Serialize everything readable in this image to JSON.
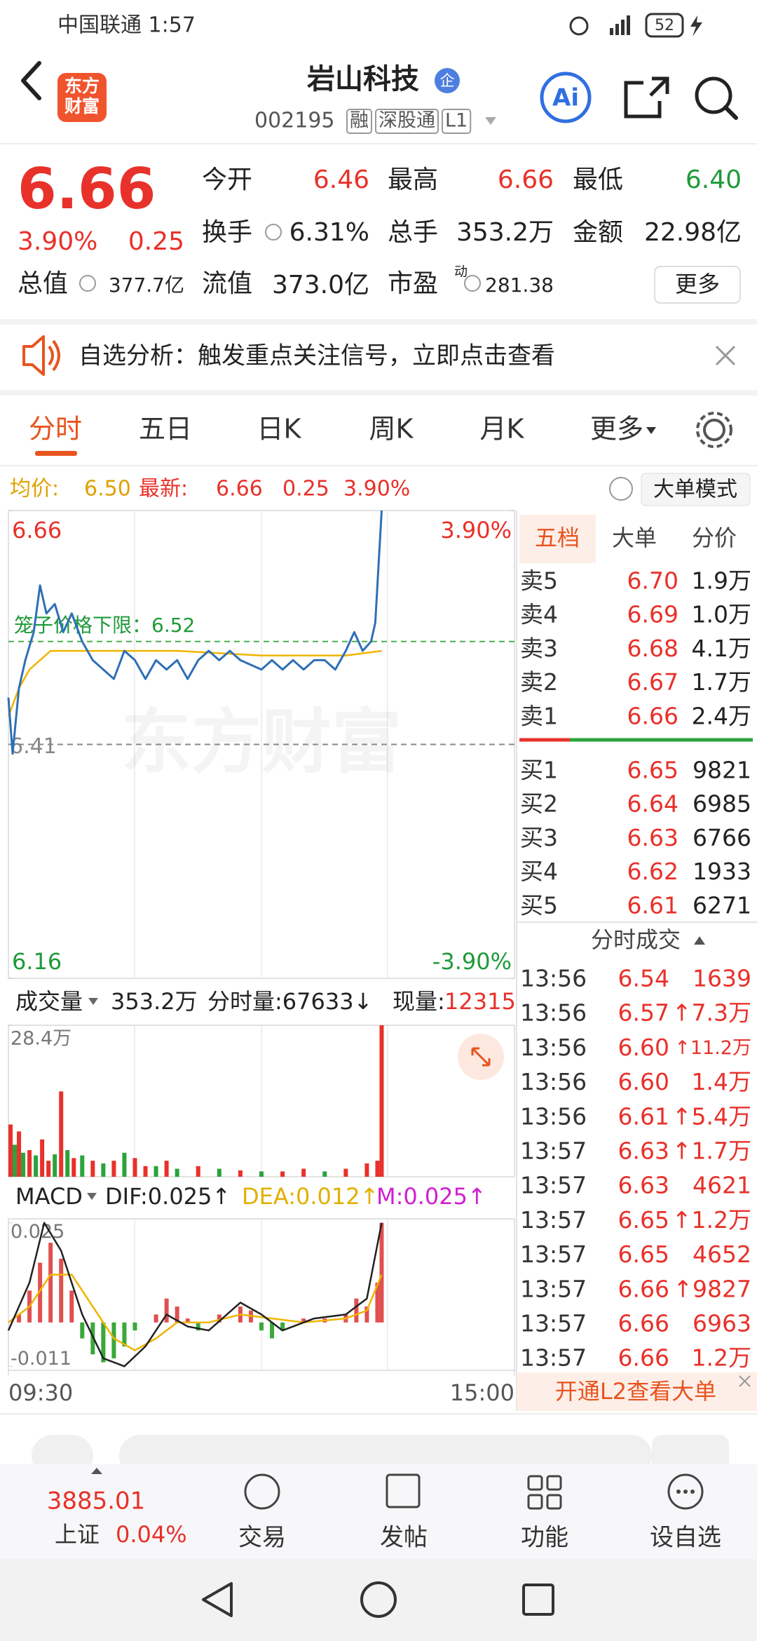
{
  "status": {
    "carrier_time": "中国联通 1:57",
    "battery": "52"
  },
  "header": {
    "logo_top": "东方",
    "logo_bottom": "财富",
    "title": "岩山科技",
    "badge": "企",
    "code": "002195",
    "tags": [
      "融",
      "深股通",
      "L1"
    ],
    "ai": "Ai"
  },
  "quote": {
    "price": "6.66",
    "change_pct": "3.90%",
    "change": "0.25",
    "rows": [
      [
        {
          "label": "今开",
          "value": "6.46",
          "color": "#e8312a"
        },
        {
          "label": "最高",
          "value": "6.66",
          "color": "#e8312a"
        },
        {
          "label": "最低",
          "value": "6.40",
          "color": "#1f9a3a"
        }
      ],
      [
        {
          "label": "换手",
          "value": "6.31%",
          "color": "#222222"
        },
        {
          "label": "总手",
          "value": "353.2万",
          "color": "#222222"
        },
        {
          "label": "金额",
          "value": "22.98亿",
          "color": "#222222"
        }
      ]
    ],
    "summary": [
      {
        "label": "总值",
        "value": "377.7亿"
      },
      {
        "label": "流值",
        "value": "373.0亿"
      },
      {
        "label": "市盈",
        "sup": "动",
        "value": "281.38"
      }
    ],
    "more": "更多"
  },
  "notice": {
    "text": "自选分析：触发重点关注信号，立即点击查看"
  },
  "tabs": {
    "items": [
      "分时",
      "五日",
      "日K",
      "周K",
      "月K",
      "更多"
    ],
    "active": 0
  },
  "info": {
    "avg_label": "均价:",
    "avg": "6.50",
    "last_label": "最新:",
    "last": "6.66",
    "change": "0.25",
    "pct": "3.90%",
    "mode": "大单模式"
  },
  "watermark": "东方财富",
  "intraday": {
    "xlim": [
      0,
      240
    ],
    "xticks": [
      {
        "value": 0,
        "label": "09:30"
      },
      {
        "value": 240,
        "label": "15:00"
      }
    ],
    "ylim": [
      6.16,
      6.66
    ],
    "yticks": [
      6.66,
      6.16
    ],
    "pct_ticks": [
      {
        "value": 6.66,
        "label": "3.90%"
      },
      {
        "value": 6.16,
        "label": "-3.90%"
      }
    ],
    "ref": 6.41,
    "cage": {
      "value": 6.52,
      "label": "笼子价格下限：6.52"
    },
    "price": {
      "color": "#2f6fb5",
      "x": [
        0,
        2,
        5,
        8,
        12,
        15,
        18,
        22,
        26,
        30,
        35,
        40,
        45,
        50,
        55,
        60,
        65,
        70,
        75,
        80,
        85,
        90,
        95,
        100,
        105,
        110,
        120,
        125,
        130,
        135,
        140,
        145,
        150,
        155,
        160,
        164,
        168,
        172,
        174,
        177
      ],
      "values": [
        6.46,
        6.4,
        6.47,
        6.5,
        6.53,
        6.58,
        6.55,
        6.56,
        6.53,
        6.55,
        6.52,
        6.5,
        6.49,
        6.48,
        6.51,
        6.5,
        6.48,
        6.5,
        6.49,
        6.5,
        6.48,
        6.5,
        6.51,
        6.5,
        6.51,
        6.5,
        6.49,
        6.5,
        6.49,
        6.5,
        6.49,
        6.5,
        6.5,
        6.49,
        6.51,
        6.53,
        6.51,
        6.52,
        6.54,
        6.66
      ]
    },
    "avg": {
      "color": "#f0b400",
      "x": [
        0,
        5,
        10,
        20,
        40,
        80,
        120,
        160,
        177
      ],
      "values": [
        6.44,
        6.47,
        6.49,
        6.51,
        6.51,
        6.51,
        6.505,
        6.505,
        6.51
      ]
    }
  },
  "volume": {
    "label": "成交量",
    "total": "353.2万",
    "minute": "分时量:67633↓",
    "now_label": "现量:",
    "now": "12315",
    "ylim": [
      0,
      28.4
    ],
    "yticks": [
      {
        "value": 28.4,
        "label": "28.4万"
      }
    ],
    "x": [
      1,
      3,
      5,
      7,
      10,
      13,
      16,
      19,
      22,
      25,
      28,
      31,
      35,
      40,
      45,
      50,
      55,
      60,
      65,
      70,
      75,
      80,
      90,
      100,
      110,
      120,
      130,
      140,
      150,
      160,
      170,
      175,
      177
    ],
    "values": [
      9.8,
      6.0,
      8.5,
      4.5,
      5.0,
      4.0,
      7.0,
      3.0,
      4.2,
      16.0,
      5.0,
      3.5,
      4.0,
      3.0,
      2.5,
      3.0,
      4.5,
      3.5,
      2.0,
      2.0,
      3.0,
      1.5,
      2.0,
      1.5,
      1.2,
      1.0,
      1.0,
      1.5,
      1.0,
      1.5,
      2.5,
      3.0,
      28.4
    ],
    "up": [
      true,
      false,
      true,
      false,
      true,
      false,
      true,
      true,
      false,
      true,
      false,
      true,
      false,
      true,
      false,
      true,
      false,
      true,
      true,
      false,
      true,
      false,
      true,
      false,
      true,
      false,
      true,
      true,
      false,
      true,
      true,
      true,
      true
    ]
  },
  "macd": {
    "label": "MACD",
    "dif_label": "DIF:0.025↑",
    "dea_label": "DEA:0.012↑",
    "m_label": "M:0.025↑",
    "ylim": [
      -0.012,
      0.026
    ],
    "yticks": [
      0.025,
      -0.011
    ],
    "bars": {
      "x": [
        5,
        10,
        15,
        20,
        25,
        30,
        35,
        40,
        45,
        50,
        55,
        60,
        70,
        75,
        80,
        85,
        90,
        100,
        110,
        115,
        120,
        125,
        130,
        140,
        150,
        160,
        165,
        170,
        175,
        177
      ],
      "values": [
        0.002,
        0.008,
        0.015,
        0.02,
        0.016,
        0.008,
        -0.004,
        -0.008,
        -0.01,
        -0.009,
        -0.006,
        -0.002,
        0.002,
        0.006,
        0.004,
        0.001,
        -0.002,
        0.002,
        0.004,
        0.003,
        -0.002,
        -0.004,
        -0.002,
        0.001,
        0.001,
        0.002,
        0.006,
        0.004,
        0.01,
        0.025
      ]
    },
    "dif": {
      "color": "#222222",
      "x": [
        0,
        10,
        17,
        25,
        35,
        45,
        55,
        65,
        75,
        85,
        95,
        110,
        120,
        130,
        145,
        160,
        170,
        177
      ],
      "values": [
        -0.002,
        0.01,
        0.025,
        0.018,
        0.002,
        -0.009,
        -0.011,
        -0.006,
        0.002,
        -0.001,
        -0.002,
        0.005,
        0.002,
        -0.002,
        0.001,
        0.002,
        0.006,
        0.025
      ]
    },
    "dea": {
      "color": "#f0b400",
      "x": [
        0,
        10,
        20,
        30,
        40,
        50,
        60,
        70,
        80,
        95,
        110,
        125,
        140,
        160,
        170,
        177
      ],
      "values": [
        0.0,
        0.004,
        0.012,
        0.012,
        0.004,
        -0.004,
        -0.007,
        -0.004,
        0.0,
        0.0,
        0.002,
        0.001,
        0.0,
        0.001,
        0.003,
        0.012
      ]
    }
  },
  "orderbook": {
    "tabs": [
      "五档",
      "大单",
      "分价"
    ],
    "sells": [
      {
        "label": "卖5",
        "price": "6.70",
        "vol": "1.9万"
      },
      {
        "label": "卖4",
        "price": "6.69",
        "vol": "1.0万"
      },
      {
        "label": "卖3",
        "price": "6.68",
        "vol": "4.1万"
      },
      {
        "label": "卖2",
        "price": "6.67",
        "vol": "1.7万"
      },
      {
        "label": "卖1",
        "price": "6.66",
        "vol": "2.4万"
      }
    ],
    "buys": [
      {
        "label": "买1",
        "price": "6.65",
        "vol": "9821"
      },
      {
        "label": "买2",
        "price": "6.64",
        "vol": "6985"
      },
      {
        "label": "买3",
        "price": "6.63",
        "vol": "6766"
      },
      {
        "label": "买4",
        "price": "6.62",
        "vol": "1933"
      },
      {
        "label": "买5",
        "price": "6.61",
        "vol": "6271"
      }
    ],
    "trades_title": "分时成交",
    "trades": [
      {
        "time": "13:56",
        "price": "6.54",
        "vol": "1639"
      },
      {
        "time": "13:56",
        "price": "6.57",
        "vol": "↑7.3万"
      },
      {
        "time": "13:56",
        "price": "6.60",
        "vol": "↑11.2万"
      },
      {
        "time": "13:56",
        "price": "6.60",
        "vol": "1.4万"
      },
      {
        "time": "13:56",
        "price": "6.61",
        "vol": "↑5.4万"
      },
      {
        "time": "13:57",
        "price": "6.63",
        "vol": "↑1.7万"
      },
      {
        "time": "13:57",
        "price": "6.63",
        "vol": "4621"
      },
      {
        "time": "13:57",
        "price": "6.65",
        "vol": "↑1.2万"
      },
      {
        "time": "13:57",
        "price": "6.65",
        "vol": "4652"
      },
      {
        "time": "13:57",
        "price": "6.66",
        "vol": "↑9827"
      },
      {
        "time": "13:57",
        "price": "6.66",
        "vol": "6963"
      },
      {
        "time": "13:57",
        "price": "6.66",
        "vol": "1.2万"
      }
    ],
    "promo": "开通L2查看大单"
  },
  "bottom_nav": {
    "index_name": "上证",
    "index_value": "3885.01",
    "index_pct": "0.04%",
    "items": [
      "交易",
      "发帖",
      "功能",
      "设自选"
    ]
  }
}
